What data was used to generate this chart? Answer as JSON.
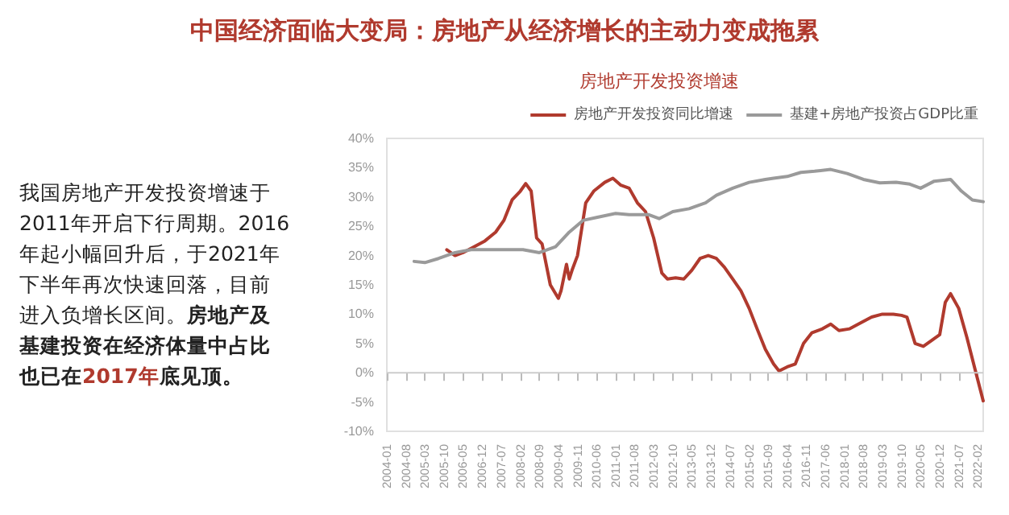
{
  "chart_data": {
    "type": "line",
    "title": "中国经济面临大变局：房地产从经济增长的主动力变成拖累",
    "subtitle": "房地产开发投资增速",
    "annotations": [
      "我国房地产开发投资增速于2011年开启下行周期。2016年起小幅回升后，于2021年下半年再次快速回落，目前进入负增长区间。",
      "房地产及基建投资在经济体量中占比也已在",
      "2017年",
      "底见顶。"
    ],
    "series": [
      {
        "name": "房地产开发投资同比增速",
        "color": "#b03a2e",
        "x": [
          "2005-11",
          "2006-02",
          "2006-05",
          "2006-09",
          "2007-01",
          "2007-05",
          "2007-08",
          "2007-11",
          "2008-02",
          "2008-04",
          "2008-06",
          "2008-08",
          "2008-10",
          "2009-01",
          "2009-04",
          "2009-05",
          "2009-07",
          "2009-08",
          "2009-09",
          "2009-11",
          "2010-02",
          "2010-05",
          "2010-09",
          "2010-12",
          "2011-03",
          "2011-06",
          "2011-09",
          "2011-12",
          "2012-03",
          "2012-06",
          "2012-08",
          "2012-11",
          "2013-02",
          "2013-05",
          "2013-08",
          "2013-11",
          "2014-02",
          "2014-05",
          "2014-08",
          "2014-11",
          "2015-02",
          "2015-05",
          "2015-08",
          "2015-11",
          "2016-01",
          "2016-04",
          "2016-07",
          "2016-10",
          "2017-01",
          "2017-05",
          "2017-08",
          "2017-11",
          "2018-03",
          "2018-07",
          "2018-11",
          "2019-03",
          "2019-07",
          "2019-10",
          "2019-12",
          "2020-03",
          "2020-06",
          "2020-09",
          "2020-12",
          "2021-02",
          "2021-04",
          "2021-07",
          "2021-10",
          "2022-01",
          "2022-04"
        ],
        "values": [
          21,
          20,
          20.5,
          21.5,
          22.5,
          24,
          26,
          29.5,
          31,
          32.3,
          31,
          23,
          22,
          15,
          12.7,
          14,
          18.5,
          16,
          17.5,
          20,
          29,
          31,
          32.5,
          33.2,
          32,
          31.5,
          29,
          27.5,
          23,
          17,
          16,
          16.2,
          16,
          17.5,
          19.5,
          20,
          19.5,
          18,
          16,
          14,
          11,
          7.5,
          4,
          1.5,
          0.3,
          1,
          1.5,
          5,
          6.8,
          7.5,
          8.3,
          7.2,
          7.5,
          8.5,
          9.5,
          10,
          10,
          9.8,
          9.5,
          5,
          4.5,
          5.5,
          6.5,
          12,
          13.5,
          11,
          6,
          0.5,
          -4.8
        ]
      },
      {
        "name": "基建+房地产投资占GDP比重",
        "color": "#9a9a9a",
        "x": [
          "2004-11",
          "2005-03",
          "2005-08",
          "2006-02",
          "2006-08",
          "2007-03",
          "2007-09",
          "2008-03",
          "2008-09",
          "2009-03",
          "2009-08",
          "2010-01",
          "2010-06",
          "2011-01",
          "2011-06",
          "2012-01",
          "2012-05",
          "2012-10",
          "2013-04",
          "2013-10",
          "2014-02",
          "2014-08",
          "2015-02",
          "2015-08",
          "2015-11",
          "2016-04",
          "2016-09",
          "2017-02",
          "2017-08",
          "2018-02",
          "2018-08",
          "2019-02",
          "2019-08",
          "2020-01",
          "2020-05",
          "2020-10",
          "2021-04",
          "2021-08",
          "2021-12",
          "2022-04"
        ],
        "values": [
          19,
          18.8,
          19.5,
          20.5,
          21,
          21,
          21,
          21,
          20.5,
          21.5,
          24,
          26,
          26.5,
          27.2,
          27,
          27,
          26.3,
          27.5,
          28,
          29,
          30.3,
          31.5,
          32.5,
          33,
          33.2,
          33.5,
          34.2,
          34.4,
          34.7,
          34,
          33,
          32.4,
          32.5,
          32.2,
          31.5,
          32.7,
          33,
          31,
          29.5,
          29.2
        ]
      }
    ],
    "xlim": [
      "2004-01",
      "2022-04"
    ],
    "xticks": [
      "2004-01",
      "2004-08",
      "2005-03",
      "2005-10",
      "2006-05",
      "2006-12",
      "2007-07",
      "2008-02",
      "2008-09",
      "2009-04",
      "2009-11",
      "2010-06",
      "2011-01",
      "2011-08",
      "2012-03",
      "2012-10",
      "2013-05",
      "2013-12",
      "2014-07",
      "2015-02",
      "2015-09",
      "2016-04",
      "2016-11",
      "2017-06",
      "2018-01",
      "2018-08",
      "2019-03",
      "2019-10",
      "2020-05",
      "2020-12",
      "2021-07",
      "2022-02"
    ],
    "ylim": [
      -10,
      40
    ],
    "yticks": [
      {
        "value": -10,
        "label": "-10%"
      },
      {
        "value": -5,
        "label": "-5%"
      },
      {
        "value": 0,
        "label": "0%"
      },
      {
        "value": 5,
        "label": "5%"
      },
      {
        "value": 10,
        "label": "10%"
      },
      {
        "value": 15,
        "label": "15%"
      },
      {
        "value": 20,
        "label": "20%"
      },
      {
        "value": 25,
        "label": "25%"
      },
      {
        "value": 30,
        "label": "30%"
      },
      {
        "value": 35,
        "label": "35%"
      },
      {
        "value": 40,
        "label": "40%"
      }
    ],
    "legend": "top right",
    "marker": "none",
    "line_style": "solid"
  }
}
